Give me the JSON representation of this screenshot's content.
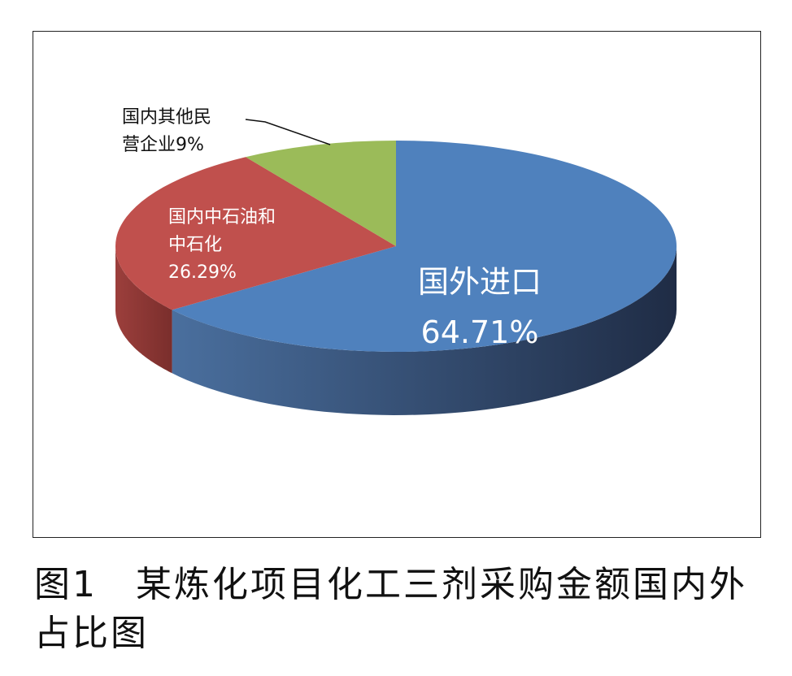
{
  "chart_data": {
    "type": "pie3d",
    "title": "图1　某炼化项目化工三剂采购金额国内外占比图",
    "categories": [
      "国外进口",
      "国内中石油和中石化",
      "国内其他民营企业"
    ],
    "values": [
      64.71,
      26.29,
      9
    ],
    "value_labels": [
      "64.71%",
      "26.29%",
      "9%"
    ],
    "colors": [
      "#4f81bd",
      "#c0504d",
      "#9bbb59"
    ]
  }
}
